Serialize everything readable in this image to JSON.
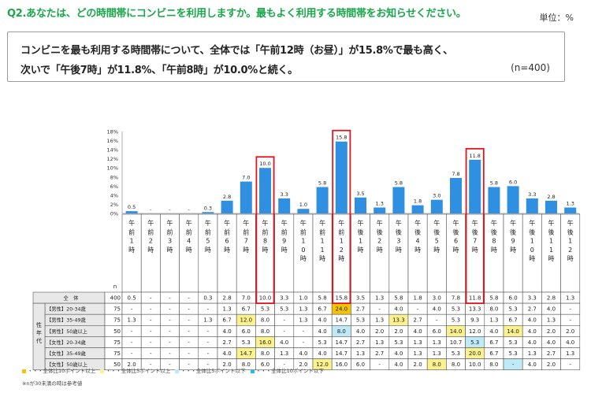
{
  "header": {
    "question": "Q2.あなたは、どの時間帯にコンビニを利用しますか。最もよく利用する時間帯をお知らせください。",
    "unit": "単位：%"
  },
  "summary": {
    "line1": "コンビニを最も利用する時間帯について、全体では「午前12時（お昼）」が15.8%で最も高く、",
    "line2": "次いで「午後7時」が11.8%、「午前8時」が10.0%と続く。",
    "sample": "(n=400)"
  },
  "colors": {
    "bar": "#2f8fe0",
    "highlight_border": "#e0151f",
    "plus10": "#f5c400",
    "plus5": "#fbf18e",
    "minus5": "#bfe9f6",
    "minus10": "#2fb7e8",
    "header_bg": "#e8e8e8"
  },
  "chart_data": {
    "type": "bar",
    "categories": [
      "午前1時",
      "午前2時",
      "午前3時",
      "午前4時",
      "午前5時",
      "午前6時",
      "午前7時",
      "午前8時",
      "午前9時",
      "午前10時",
      "午前11時",
      "午前12時",
      "午後1時",
      "午後2時",
      "午後3時",
      "午後4時",
      "午後5時",
      "午後6時",
      "午後7時",
      "午後8時",
      "午後9時",
      "午後10時",
      "午後11時",
      "午後12時"
    ],
    "values": [
      0.5,
      0,
      0,
      0,
      0.3,
      2.8,
      7.0,
      10.0,
      3.3,
      1.0,
      5.8,
      15.8,
      3.5,
      1.3,
      5.8,
      1.8,
      3.0,
      7.8,
      11.8,
      5.8,
      6.0,
      3.3,
      2.8,
      1.3
    ],
    "value_labels": [
      "0.5",
      "-",
      "-",
      "-",
      "0.3",
      "2.8",
      "7.0",
      "10.0",
      "3.3",
      "1.0",
      "5.8",
      "15.8",
      "3.5",
      "1.3",
      "5.8",
      "1.8",
      "3.0",
      "7.8",
      "11.8",
      "5.8",
      "6.0",
      "3.3",
      "2.8",
      "1.3"
    ],
    "ylim": [
      0,
      18
    ],
    "yticks": [
      "0%",
      "2%",
      "4%",
      "6%",
      "8%",
      "10%",
      "12%",
      "14%",
      "16%",
      "18%"
    ],
    "highlighted_categories": [
      "午前8時",
      "午前12時",
      "午後7時"
    ]
  },
  "table": {
    "n_label": "n",
    "group_label": "性年代",
    "rows": [
      {
        "label": "全　体",
        "n": "400",
        "values": [
          "0.5",
          "-",
          "-",
          "-",
          "0.3",
          "2.8",
          "7.0",
          "10.0",
          "3.3",
          "1.0",
          "5.8",
          "15.8",
          "3.5",
          "1.3",
          "5.8",
          "1.8",
          "3.0",
          "7.8",
          "11.8",
          "5.8",
          "6.0",
          "3.3",
          "2.8",
          "1.3"
        ],
        "marks": {}
      },
      {
        "label": "【男性】20-34歳",
        "n": "75",
        "values": [
          "-",
          "-",
          "-",
          "-",
          "-",
          "1.3",
          "6.7",
          "5.3",
          "5.3",
          "1.3",
          "6.7",
          "24.0",
          "2.7",
          "-",
          "4.0",
          "-",
          "4.0",
          "5.3",
          "13.3",
          "8.0",
          "5.3",
          "2.7",
          "4.0",
          "-"
        ],
        "marks": {
          "11": "plus10"
        }
      },
      {
        "label": "【男性】35-49歳",
        "n": "75",
        "values": [
          "1.3",
          "-",
          "-",
          "-",
          "1.3",
          "6.7",
          "12.0",
          "8.0",
          "-",
          "1.3",
          "4.0",
          "14.7",
          "5.3",
          "1.3",
          "13.3",
          "2.7",
          "-",
          "5.3",
          "9.3",
          "1.3",
          "6.7",
          "4.0",
          "1.3",
          "-"
        ],
        "marks": {
          "6": "plus5",
          "14": "plus5"
        }
      },
      {
        "label": "【男性】50歳以上",
        "n": "50",
        "values": [
          "-",
          "-",
          "-",
          "-",
          "-",
          "4.0",
          "6.0",
          "8.0",
          "-",
          "-",
          "4.0",
          "8.0",
          "4.0",
          "2.0",
          "2.0",
          "4.0",
          "6.0",
          "14.0",
          "12.0",
          "4.0",
          "14.0",
          "4.0",
          "2.0",
          "2.0"
        ],
        "marks": {
          "11": "minus5",
          "17": "plus5",
          "20": "plus5"
        }
      },
      {
        "label": "【女性】20-34歳",
        "n": "75",
        "values": [
          "-",
          "-",
          "-",
          "-",
          "-",
          "2.7",
          "5.3",
          "16.0",
          "4.0",
          "-",
          "5.3",
          "14.7",
          "2.7",
          "1.3",
          "5.3",
          "1.3",
          "1.3",
          "10.7",
          "5.3",
          "6.7",
          "5.3",
          "4.0",
          "4.0",
          "4.0"
        ],
        "marks": {
          "7": "plus5",
          "18": "minus5"
        }
      },
      {
        "label": "【女性】35-49歳",
        "n": "75",
        "values": [
          "-",
          "-",
          "-",
          "-",
          "-",
          "4.0",
          "14.7",
          "8.0",
          "1.3",
          "4.0",
          "4.0",
          "14.7",
          "1.3",
          "2.7",
          "4.0",
          "1.3",
          "1.3",
          "5.3",
          "20.0",
          "6.7",
          "5.3",
          "1.3",
          "2.7",
          "1.3"
        ],
        "marks": {
          "6": "plus5",
          "18": "plus5"
        }
      },
      {
        "label": "【女性】50歳以上",
        "n": "50",
        "values": [
          "2.0",
          "-",
          "-",
          "-",
          "-",
          "2.0",
          "8.0",
          "6.0",
          "-",
          "2.0",
          "12.0",
          "16.0",
          "6.0",
          "-",
          "4.0",
          "2.0",
          "8.0",
          "8.0",
          "10.0",
          "8.0",
          "-",
          "4.0",
          "2.0",
          "-"
        ],
        "marks": {
          "10": "plus5",
          "16": "plus5",
          "20": "minus5"
        }
      }
    ]
  },
  "legend": {
    "plus10": "・・・全体比10ポイント以上",
    "plus5": "・・・全体比5ポイント以上",
    "minus5": "・・・全体比5ポイント以下",
    "minus10": "・・・全体比10ポイント以下"
  },
  "note": "※nが30未満の時は参考値"
}
